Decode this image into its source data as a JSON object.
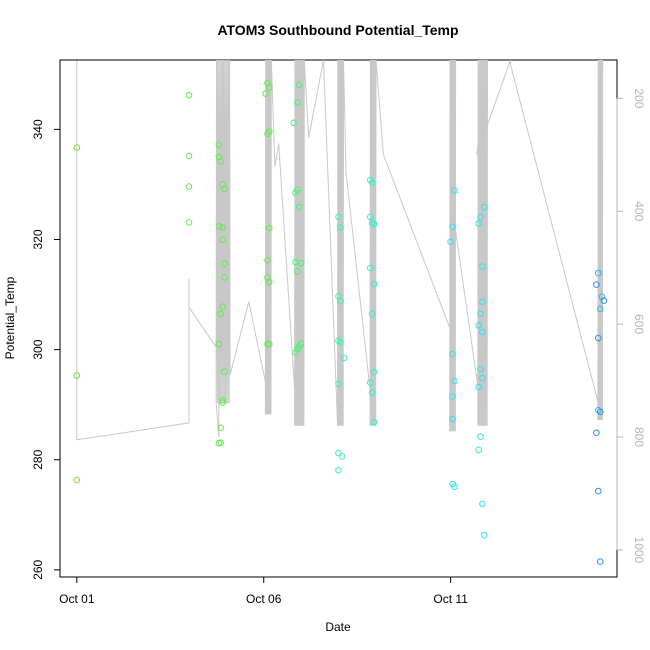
{
  "chart_data": {
    "type": "scatter",
    "title": "ATOM3 Southbound Potential_Temp",
    "xlabel": "Date",
    "ylabel": "Potential_Temp",
    "x_ticks": [
      {
        "label": "Oct 01",
        "day": 1
      },
      {
        "label": "Oct 06",
        "day": 6
      },
      {
        "label": "Oct 11",
        "day": 11
      }
    ],
    "x_range_days": [
      0.55,
      15.45
    ],
    "ylim": [
      258.7,
      352.6
    ],
    "y_ticks": [
      260,
      280,
      300,
      320,
      340
    ],
    "right_axis": {
      "ticks": [
        200,
        400,
        600,
        800,
        1000
      ],
      "range": [
        1048,
        132
      ],
      "reversed": true,
      "color": "#b5b5b5"
    },
    "grid": false,
    "legend": "none",
    "track_color": "#c8c8c8",
    "point_colors": [
      "#7ddc37",
      "#5fec4a",
      "#3ff56e",
      "#34f7a6",
      "#30efcf",
      "#2fe2ee",
      "#2bb8f5",
      "#2a91ee"
    ],
    "points": [
      {
        "d": 1.0,
        "t": 336.7,
        "c": 0
      },
      {
        "d": 1.0,
        "t": 295.3,
        "c": 0
      },
      {
        "d": 1.0,
        "t": 276.3,
        "c": 0
      },
      {
        "d": 4.0,
        "t": 346.2,
        "c": 1
      },
      {
        "d": 4.0,
        "t": 335.2,
        "c": 1
      },
      {
        "d": 4.0,
        "t": 329.6,
        "c": 1
      },
      {
        "d": 4.0,
        "t": 323.1,
        "c": 1
      },
      {
        "d": 4.8,
        "t": 337.2,
        "c": 1
      },
      {
        "d": 4.8,
        "t": 335.0,
        "c": 1
      },
      {
        "d": 4.85,
        "t": 334.2,
        "c": 1
      },
      {
        "d": 4.9,
        "t": 330.0,
        "c": 1
      },
      {
        "d": 4.95,
        "t": 329.2,
        "c": 1
      },
      {
        "d": 4.8,
        "t": 322.4,
        "c": 1
      },
      {
        "d": 4.9,
        "t": 322.2,
        "c": 1
      },
      {
        "d": 4.9,
        "t": 320.0,
        "c": 1
      },
      {
        "d": 4.95,
        "t": 315.6,
        "c": 1
      },
      {
        "d": 4.95,
        "t": 313.1,
        "c": 1
      },
      {
        "d": 4.9,
        "t": 307.8,
        "c": 1
      },
      {
        "d": 4.85,
        "t": 306.5,
        "c": 1
      },
      {
        "d": 4.8,
        "t": 301.0,
        "c": 1
      },
      {
        "d": 4.95,
        "t": 296.0,
        "c": 1
      },
      {
        "d": 4.9,
        "t": 290.8,
        "c": 1
      },
      {
        "d": 4.9,
        "t": 290.4,
        "c": 1
      },
      {
        "d": 4.85,
        "t": 285.8,
        "c": 1
      },
      {
        "d": 4.8,
        "t": 283.0,
        "c": 1
      },
      {
        "d": 4.85,
        "t": 283.1,
        "c": 1
      },
      {
        "d": 6.1,
        "t": 348.4,
        "c": 1
      },
      {
        "d": 6.15,
        "t": 347.6,
        "c": 1
      },
      {
        "d": 6.05,
        "t": 346.5,
        "c": 1
      },
      {
        "d": 6.15,
        "t": 339.6,
        "c": 1
      },
      {
        "d": 6.1,
        "t": 339.2,
        "c": 1
      },
      {
        "d": 6.15,
        "t": 322.1,
        "c": 1
      },
      {
        "d": 6.1,
        "t": 316.2,
        "c": 1
      },
      {
        "d": 6.1,
        "t": 313.1,
        "c": 1
      },
      {
        "d": 6.15,
        "t": 312.3,
        "c": 1
      },
      {
        "d": 6.1,
        "t": 301.0,
        "c": 1
      },
      {
        "d": 6.15,
        "t": 301.0,
        "c": 1
      },
      {
        "d": 6.95,
        "t": 348.1,
        "c": 2
      },
      {
        "d": 6.9,
        "t": 344.9,
        "c": 2
      },
      {
        "d": 6.8,
        "t": 341.2,
        "c": 2
      },
      {
        "d": 6.9,
        "t": 329.0,
        "c": 2
      },
      {
        "d": 6.85,
        "t": 328.5,
        "c": 2
      },
      {
        "d": 6.95,
        "t": 325.9,
        "c": 2
      },
      {
        "d": 6.85,
        "t": 315.9,
        "c": 2
      },
      {
        "d": 7.0,
        "t": 315.7,
        "c": 2
      },
      {
        "d": 6.9,
        "t": 314.2,
        "c": 2
      },
      {
        "d": 7.0,
        "t": 301.1,
        "c": 2
      },
      {
        "d": 6.95,
        "t": 300.6,
        "c": 2
      },
      {
        "d": 6.9,
        "t": 300.1,
        "c": 2
      },
      {
        "d": 6.85,
        "t": 299.5,
        "c": 2
      },
      {
        "d": 8.0,
        "t": 324.1,
        "c": 3
      },
      {
        "d": 8.05,
        "t": 322.2,
        "c": 3
      },
      {
        "d": 8.0,
        "t": 309.7,
        "c": 3
      },
      {
        "d": 8.05,
        "t": 308.8,
        "c": 3
      },
      {
        "d": 8.0,
        "t": 301.6,
        "c": 3
      },
      {
        "d": 8.05,
        "t": 301.3,
        "c": 3
      },
      {
        "d": 8.15,
        "t": 298.5,
        "c": 3
      },
      {
        "d": 8.0,
        "t": 293.8,
        "c": 3
      },
      {
        "d": 8.0,
        "t": 281.2,
        "c": 3
      },
      {
        "d": 8.1,
        "t": 280.6,
        "c": 3
      },
      {
        "d": 8.0,
        "t": 278.1,
        "c": 3
      },
      {
        "d": 8.85,
        "t": 330.8,
        "c": 4
      },
      {
        "d": 8.9,
        "t": 330.3,
        "c": 4
      },
      {
        "d": 8.85,
        "t": 324.1,
        "c": 4
      },
      {
        "d": 8.9,
        "t": 323.0,
        "c": 4
      },
      {
        "d": 8.95,
        "t": 322.8,
        "c": 4
      },
      {
        "d": 8.85,
        "t": 314.8,
        "c": 4
      },
      {
        "d": 8.95,
        "t": 311.9,
        "c": 4
      },
      {
        "d": 8.9,
        "t": 306.5,
        "c": 4
      },
      {
        "d": 8.95,
        "t": 295.9,
        "c": 4
      },
      {
        "d": 8.85,
        "t": 294.0,
        "c": 4
      },
      {
        "d": 8.9,
        "t": 292.2,
        "c": 4
      },
      {
        "d": 8.95,
        "t": 286.8,
        "c": 4
      },
      {
        "d": 11.1,
        "t": 328.9,
        "c": 5
      },
      {
        "d": 11.05,
        "t": 322.3,
        "c": 5
      },
      {
        "d": 11.0,
        "t": 319.6,
        "c": 5
      },
      {
        "d": 11.05,
        "t": 299.2,
        "c": 5
      },
      {
        "d": 11.1,
        "t": 294.3,
        "c": 5
      },
      {
        "d": 11.05,
        "t": 291.5,
        "c": 5
      },
      {
        "d": 11.05,
        "t": 287.4,
        "c": 5
      },
      {
        "d": 11.05,
        "t": 275.6,
        "c": 5
      },
      {
        "d": 11.1,
        "t": 275.1,
        "c": 5
      },
      {
        "d": 11.9,
        "t": 325.9,
        "c": 5
      },
      {
        "d": 11.8,
        "t": 324.1,
        "c": 5
      },
      {
        "d": 11.75,
        "t": 322.9,
        "c": 5
      },
      {
        "d": 11.85,
        "t": 315.1,
        "c": 5
      },
      {
        "d": 11.85,
        "t": 308.7,
        "c": 5
      },
      {
        "d": 11.8,
        "t": 306.5,
        "c": 5
      },
      {
        "d": 11.75,
        "t": 304.4,
        "c": 5
      },
      {
        "d": 11.85,
        "t": 303.2,
        "c": 5
      },
      {
        "d": 11.8,
        "t": 296.5,
        "c": 5
      },
      {
        "d": 11.85,
        "t": 294.8,
        "c": 5
      },
      {
        "d": 11.75,
        "t": 293.2,
        "c": 5
      },
      {
        "d": 11.8,
        "t": 284.2,
        "c": 5
      },
      {
        "d": 11.75,
        "t": 281.8,
        "c": 5
      },
      {
        "d": 11.85,
        "t": 272.0,
        "c": 5
      },
      {
        "d": 11.9,
        "t": 266.3,
        "c": 5
      },
      {
        "d": 14.95,
        "t": 313.9,
        "c": 6
      },
      {
        "d": 14.9,
        "t": 311.8,
        "c": 7
      },
      {
        "d": 15.05,
        "t": 309.6,
        "c": 6
      },
      {
        "d": 15.1,
        "t": 308.9,
        "c": 7
      },
      {
        "d": 15.0,
        "t": 307.4,
        "c": 6
      },
      {
        "d": 14.95,
        "t": 302.1,
        "c": 7
      },
      {
        "d": 14.95,
        "t": 289.0,
        "c": 6
      },
      {
        "d": 15.0,
        "t": 288.7,
        "c": 7
      },
      {
        "d": 14.9,
        "t": 284.9,
        "c": 7
      },
      {
        "d": 14.95,
        "t": 274.3,
        "c": 7
      },
      {
        "d": 15.0,
        "t": 261.5,
        "c": 7
      }
    ]
  }
}
